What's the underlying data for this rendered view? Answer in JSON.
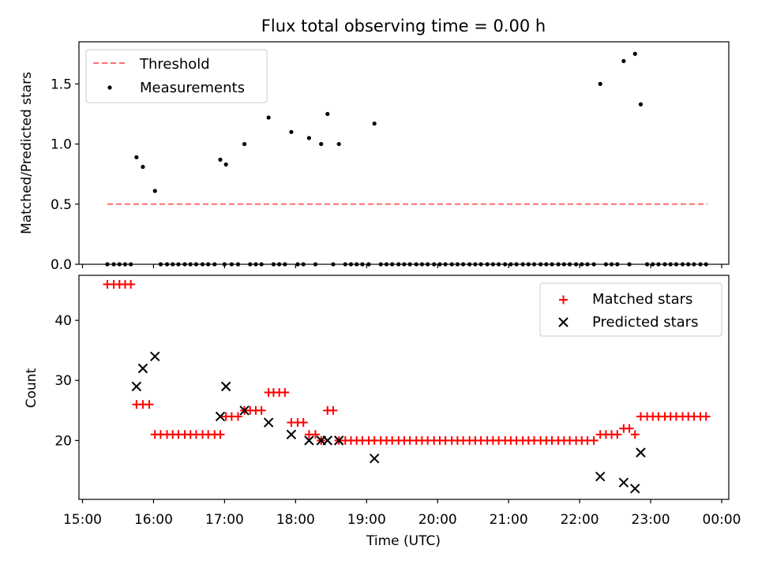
{
  "colors": {
    "threshold": "#ff6f6f",
    "measurement": "#000000",
    "matched": "#ff0000",
    "predicted": "#000000"
  },
  "chart_data": [
    {
      "type": "scatter",
      "title": "Flux total observing time = 0.00 h",
      "xlabel": "",
      "ylabel": "Matched/Predicted stars",
      "x_unit": "hours since 15:00 UTC",
      "xlim": [
        -0.05,
        9.1
      ],
      "ylim": [
        0,
        1.85
      ],
      "yticks": [
        "0.0",
        "0.5",
        "1.0",
        "1.5"
      ],
      "legend": {
        "position": "top-left",
        "entries": [
          "Threshold",
          "Measurements"
        ]
      },
      "threshold": {
        "name": "Threshold",
        "y": 0.5,
        "x_start": 0.35,
        "x_end": 8.8,
        "style": "dashed"
      },
      "series": [
        {
          "name": "Measurements",
          "marker": "dot",
          "points": [
            [
              0.35,
              0
            ],
            [
              0.44,
              0
            ],
            [
              0.52,
              0
            ],
            [
              0.6,
              0
            ],
            [
              0.68,
              0
            ],
            [
              0.76,
              0.89
            ],
            [
              0.85,
              0.81
            ],
            [
              1.02,
              0.61
            ],
            [
              1.1,
              0
            ],
            [
              1.19,
              0
            ],
            [
              1.27,
              0
            ],
            [
              1.35,
              0
            ],
            [
              1.44,
              0
            ],
            [
              1.52,
              0
            ],
            [
              1.6,
              0
            ],
            [
              1.69,
              0
            ],
            [
              1.77,
              0
            ],
            [
              1.86,
              0
            ],
            [
              2.0,
              0
            ],
            [
              2.1,
              0
            ],
            [
              2.19,
              0
            ],
            [
              1.94,
              0.87
            ],
            [
              2.02,
              0.83
            ],
            [
              2.28,
              1.0
            ],
            [
              2.36,
              0
            ],
            [
              2.44,
              0
            ],
            [
              2.52,
              0
            ],
            [
              2.62,
              1.22
            ],
            [
              2.69,
              0
            ],
            [
              2.77,
              0
            ],
            [
              2.85,
              0
            ],
            [
              2.94,
              1.1
            ],
            [
              3.03,
              0
            ],
            [
              3.11,
              0
            ],
            [
              3.19,
              1.05
            ],
            [
              3.28,
              0
            ],
            [
              3.36,
              1.0
            ],
            [
              3.45,
              1.25
            ],
            [
              3.53,
              0
            ],
            [
              3.61,
              1.0
            ],
            [
              3.7,
              0
            ],
            [
              3.78,
              0
            ],
            [
              3.86,
              0
            ],
            [
              3.94,
              0
            ],
            [
              4.03,
              0
            ],
            [
              4.11,
              1.17
            ],
            [
              4.2,
              0
            ],
            [
              4.28,
              0
            ],
            [
              4.36,
              0
            ],
            [
              4.45,
              0
            ],
            [
              4.53,
              0
            ],
            [
              4.61,
              0
            ],
            [
              4.7,
              0
            ],
            [
              4.78,
              0
            ],
            [
              4.86,
              0
            ],
            [
              4.95,
              0
            ],
            [
              5.03,
              0
            ],
            [
              5.11,
              0
            ],
            [
              5.2,
              0
            ],
            [
              5.28,
              0
            ],
            [
              5.36,
              0
            ],
            [
              5.45,
              0
            ],
            [
              5.53,
              0
            ],
            [
              5.61,
              0
            ],
            [
              5.7,
              0
            ],
            [
              5.78,
              0
            ],
            [
              5.86,
              0
            ],
            [
              5.95,
              0
            ],
            [
              6.03,
              0
            ],
            [
              6.11,
              0
            ],
            [
              6.2,
              0
            ],
            [
              6.28,
              0
            ],
            [
              6.36,
              0
            ],
            [
              6.45,
              0
            ],
            [
              6.53,
              0
            ],
            [
              6.61,
              0
            ],
            [
              6.7,
              0
            ],
            [
              6.78,
              0
            ],
            [
              6.86,
              0
            ],
            [
              6.95,
              0
            ],
            [
              7.03,
              0
            ],
            [
              7.11,
              0
            ],
            [
              7.2,
              0
            ],
            [
              7.29,
              1.5
            ],
            [
              7.37,
              0
            ],
            [
              7.45,
              0
            ],
            [
              7.53,
              0
            ],
            [
              7.62,
              1.69
            ],
            [
              7.7,
              0
            ],
            [
              7.78,
              1.75
            ],
            [
              7.86,
              1.33
            ],
            [
              7.95,
              0
            ],
            [
              8.03,
              0
            ],
            [
              8.11,
              0
            ],
            [
              8.2,
              0
            ],
            [
              8.28,
              0
            ],
            [
              8.36,
              0
            ],
            [
              8.45,
              0
            ],
            [
              8.53,
              0
            ],
            [
              8.61,
              0
            ],
            [
              8.7,
              0
            ],
            [
              8.78,
              0
            ]
          ]
        }
      ]
    },
    {
      "type": "scatter",
      "title": "",
      "xlabel": "Time (UTC)",
      "ylabel": "Count",
      "x_unit": "hours since 15:00 UTC",
      "xlim": [
        -0.05,
        9.1
      ],
      "ylim": [
        10.2,
        47.5
      ],
      "yticks": [
        "20",
        "30",
        "40"
      ],
      "xtick_labels": [
        "15:00",
        "16:00",
        "17:00",
        "18:00",
        "19:00",
        "20:00",
        "21:00",
        "22:00",
        "23:00",
        "00:00"
      ],
      "legend": {
        "position": "top-right",
        "entries": [
          "Matched stars",
          "Predicted stars"
        ]
      },
      "series": [
        {
          "name": "Matched stars",
          "marker": "plus",
          "points": [
            [
              0.35,
              46
            ],
            [
              0.44,
              46
            ],
            [
              0.52,
              46
            ],
            [
              0.6,
              46
            ],
            [
              0.68,
              46
            ],
            [
              0.76,
              26
            ],
            [
              0.85,
              26
            ],
            [
              0.94,
              26
            ],
            [
              1.02,
              21
            ],
            [
              1.1,
              21
            ],
            [
              1.19,
              21
            ],
            [
              1.27,
              21
            ],
            [
              1.35,
              21
            ],
            [
              1.44,
              21
            ],
            [
              1.52,
              21
            ],
            [
              1.6,
              21
            ],
            [
              1.69,
              21
            ],
            [
              1.77,
              21
            ],
            [
              1.86,
              21
            ],
            [
              1.94,
              21
            ],
            [
              2.02,
              24
            ],
            [
              2.1,
              24
            ],
            [
              2.19,
              24
            ],
            [
              2.28,
              25
            ],
            [
              2.36,
              25
            ],
            [
              2.44,
              25
            ],
            [
              2.52,
              25
            ],
            [
              2.62,
              28
            ],
            [
              2.69,
              28
            ],
            [
              2.77,
              28
            ],
            [
              2.85,
              28
            ],
            [
              2.94,
              23
            ],
            [
              3.03,
              23
            ],
            [
              3.11,
              23
            ],
            [
              3.19,
              21
            ],
            [
              3.28,
              21
            ],
            [
              3.36,
              20
            ],
            [
              3.45,
              25
            ],
            [
              3.53,
              25
            ],
            [
              3.61,
              20
            ],
            [
              3.7,
              20
            ],
            [
              3.78,
              20
            ],
            [
              3.86,
              20
            ],
            [
              3.94,
              20
            ],
            [
              4.03,
              20
            ],
            [
              4.11,
              20
            ],
            [
              4.2,
              20
            ],
            [
              4.28,
              20
            ],
            [
              4.36,
              20
            ],
            [
              4.45,
              20
            ],
            [
              4.53,
              20
            ],
            [
              4.61,
              20
            ],
            [
              4.7,
              20
            ],
            [
              4.78,
              20
            ],
            [
              4.86,
              20
            ],
            [
              4.95,
              20
            ],
            [
              5.03,
              20
            ],
            [
              5.11,
              20
            ],
            [
              5.2,
              20
            ],
            [
              5.28,
              20
            ],
            [
              5.36,
              20
            ],
            [
              5.45,
              20
            ],
            [
              5.53,
              20
            ],
            [
              5.61,
              20
            ],
            [
              5.7,
              20
            ],
            [
              5.78,
              20
            ],
            [
              5.86,
              20
            ],
            [
              5.95,
              20
            ],
            [
              6.03,
              20
            ],
            [
              6.11,
              20
            ],
            [
              6.2,
              20
            ],
            [
              6.28,
              20
            ],
            [
              6.36,
              20
            ],
            [
              6.45,
              20
            ],
            [
              6.53,
              20
            ],
            [
              6.61,
              20
            ],
            [
              6.7,
              20
            ],
            [
              6.78,
              20
            ],
            [
              6.86,
              20
            ],
            [
              6.95,
              20
            ],
            [
              7.03,
              20
            ],
            [
              7.11,
              20
            ],
            [
              7.2,
              20
            ],
            [
              7.29,
              21
            ],
            [
              7.37,
              21
            ],
            [
              7.45,
              21
            ],
            [
              7.53,
              21
            ],
            [
              7.62,
              22
            ],
            [
              7.7,
              22
            ],
            [
              7.78,
              21
            ],
            [
              7.86,
              24
            ],
            [
              7.95,
              24
            ],
            [
              8.03,
              24
            ],
            [
              8.11,
              24
            ],
            [
              8.2,
              24
            ],
            [
              8.28,
              24
            ],
            [
              8.36,
              24
            ],
            [
              8.45,
              24
            ],
            [
              8.53,
              24
            ],
            [
              8.61,
              24
            ],
            [
              8.7,
              24
            ],
            [
              8.78,
              24
            ]
          ]
        },
        {
          "name": "Predicted stars",
          "marker": "x",
          "points": [
            [
              0.76,
              29
            ],
            [
              0.85,
              32
            ],
            [
              1.02,
              34
            ],
            [
              1.94,
              24
            ],
            [
              2.02,
              29
            ],
            [
              2.28,
              25
            ],
            [
              2.62,
              23
            ],
            [
              2.94,
              21
            ],
            [
              3.19,
              20
            ],
            [
              3.36,
              20
            ],
            [
              3.45,
              20
            ],
            [
              3.61,
              20
            ],
            [
              4.11,
              17
            ],
            [
              7.29,
              14
            ],
            [
              7.62,
              13
            ],
            [
              7.78,
              12
            ],
            [
              7.86,
              18
            ]
          ]
        }
      ]
    }
  ]
}
